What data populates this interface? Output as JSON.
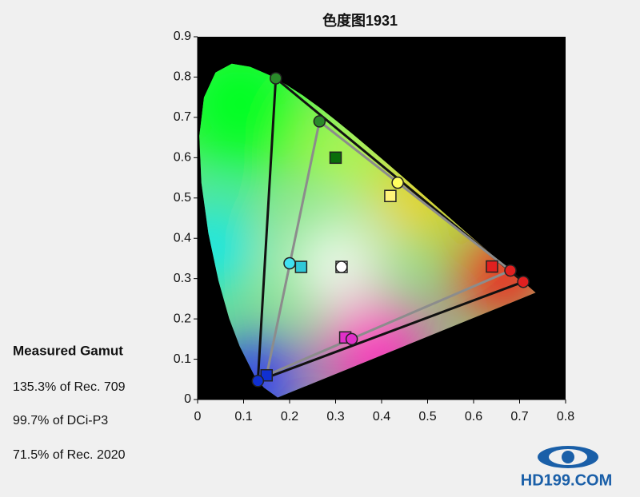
{
  "chart_data": {
    "type": "scatter",
    "title": "色度图1931",
    "xlim": [
      0,
      0.8
    ],
    "ylim": [
      0,
      0.9
    ],
    "xticks": [
      0,
      0.1,
      0.2,
      0.3,
      0.4,
      0.5,
      0.6,
      0.7,
      0.8
    ],
    "yticks": [
      0,
      0.1,
      0.2,
      0.3,
      0.4,
      0.5,
      0.6,
      0.7,
      0.8,
      0.9
    ],
    "gamut_lines": [
      {
        "color": "#111111",
        "x": [
          0.708,
          0.17,
          0.131
        ],
        "values": [
          0.292,
          0.797,
          0.046
        ]
      },
      {
        "color": "#8c8c8c",
        "x": [
          0.68,
          0.265,
          0.15
        ],
        "values": [
          0.32,
          0.69,
          0.06
        ]
      }
    ],
    "series": [
      {
        "marker": "square",
        "x": [
          0.64,
          0.3,
          0.15,
          0.313,
          0.225,
          0.419,
          0.321
        ],
        "values": [
          0.33,
          0.6,
          0.06,
          0.329,
          0.329,
          0.505,
          0.154
        ],
        "colors": [
          "#e02020",
          "#0a6e0a",
          "#1030d0",
          "#ffffff",
          "#30c8d8",
          "#fff47a",
          "#e030c8"
        ]
      },
      {
        "marker": "circle",
        "x": [
          0.68,
          0.708,
          0.17,
          0.265,
          0.131,
          0.3127,
          0.2,
          0.435,
          0.335
        ],
        "values": [
          0.32,
          0.292,
          0.797,
          0.69,
          0.046,
          0.329,
          0.338,
          0.538,
          0.15
        ],
        "colors": [
          "#e02020",
          "#e02020",
          "#2a8a2a",
          "#2a8a2a",
          "#1030d0",
          "#ffffff",
          "#40e0f0",
          "#ffff60",
          "#e030c8"
        ]
      }
    ],
    "annotations": [
      "Measured Gamut",
      "135.3% of Rec. 709",
      "99.7% of DCi-P3",
      "71.5% of Rec. 2020"
    ],
    "logo": "HD199.COM"
  }
}
